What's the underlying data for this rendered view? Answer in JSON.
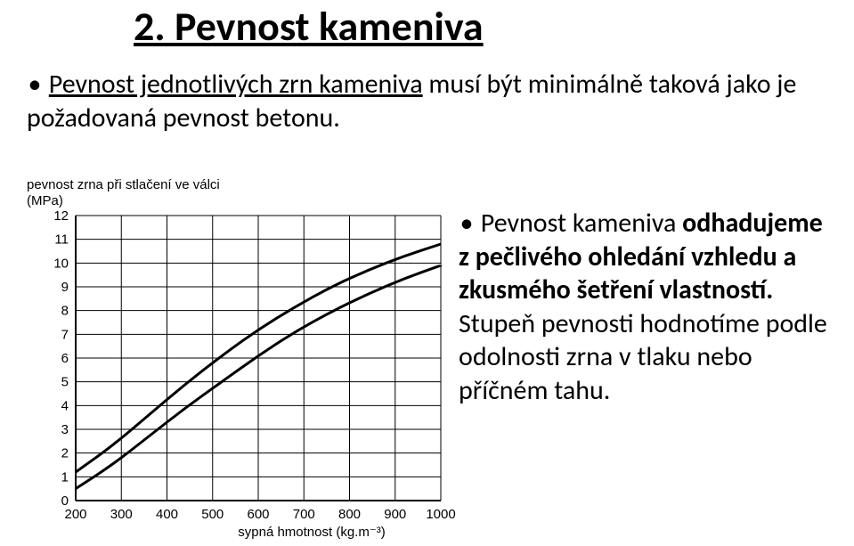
{
  "heading": "2. Pevnost kameniva",
  "intro": {
    "underlined": "Pevnost jednotlivých zrn kameniva",
    "rest": " musí být minimálně taková jako je požadovaná pevnost betonu."
  },
  "bullet_text": {
    "line1_prefix": "Pevnost kameniva ",
    "line1_bold": "odhadujeme z pečlivého ohledání vzhledu a zkusmého šetření vlastností.",
    "line2": " Stupeň pevnosti hodnotíme podle odolnosti zrna v tlaku nebo příčném tahu."
  },
  "bullet_glyph": "•",
  "chart": {
    "type": "line",
    "y_axis_label_line1": "pevnost zrna při stlačení ve válci",
    "y_axis_label_line2": "(MPa)",
    "x_axis_label": "sypná hmotnost (kg.m⁻³)",
    "xlim": [
      200,
      1000
    ],
    "ylim": [
      0,
      12
    ],
    "x_ticks": [
      200,
      300,
      400,
      500,
      600,
      700,
      800,
      900,
      1000
    ],
    "y_ticks": [
      0,
      1,
      2,
      3,
      4,
      5,
      6,
      7,
      8,
      9,
      10,
      11,
      12
    ],
    "line_color": "#000000",
    "line_width": 3,
    "grid_color": "#000000",
    "grid_width": 1,
    "background_color": "#ffffff",
    "label_fontsize": 15,
    "tick_fontsize": 15,
    "upper_curve": [
      {
        "x": 200,
        "y": 1.2
      },
      {
        "x": 280,
        "y": 2.3
      },
      {
        "x": 360,
        "y": 3.6
      },
      {
        "x": 440,
        "y": 4.9
      },
      {
        "x": 520,
        "y": 6.1
      },
      {
        "x": 600,
        "y": 7.2
      },
      {
        "x": 680,
        "y": 8.15
      },
      {
        "x": 760,
        "y": 9.0
      },
      {
        "x": 840,
        "y": 9.7
      },
      {
        "x": 920,
        "y": 10.3
      },
      {
        "x": 1000,
        "y": 10.8
      }
    ],
    "lower_curve": [
      {
        "x": 200,
        "y": 0.5
      },
      {
        "x": 280,
        "y": 1.5
      },
      {
        "x": 360,
        "y": 2.7
      },
      {
        "x": 440,
        "y": 3.9
      },
      {
        "x": 520,
        "y": 5.0
      },
      {
        "x": 600,
        "y": 6.1
      },
      {
        "x": 680,
        "y": 7.1
      },
      {
        "x": 760,
        "y": 7.95
      },
      {
        "x": 840,
        "y": 8.7
      },
      {
        "x": 920,
        "y": 9.35
      },
      {
        "x": 1000,
        "y": 9.9
      }
    ]
  }
}
